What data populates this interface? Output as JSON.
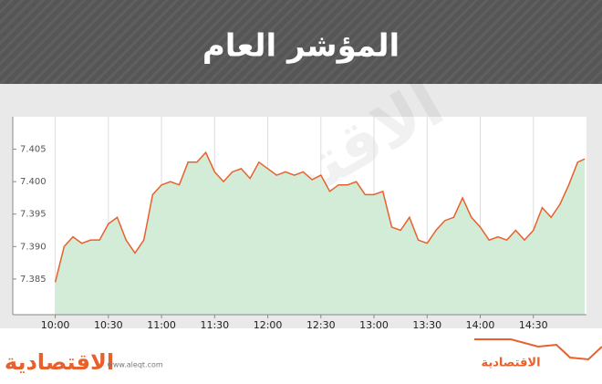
{
  "chart_data": {
    "type": "area",
    "title": "المؤشر العام",
    "x": [
      "10:00",
      "10:05",
      "10:10",
      "10:15",
      "10:20",
      "10:25",
      "10:30",
      "10:35",
      "10:40",
      "10:45",
      "10:50",
      "10:55",
      "11:00",
      "11:05",
      "11:10",
      "11:15",
      "11:20",
      "11:25",
      "11:30",
      "11:35",
      "11:40",
      "11:45",
      "11:50",
      "11:55",
      "12:00",
      "12:05",
      "12:10",
      "12:15",
      "12:20",
      "12:25",
      "12:30",
      "12:35",
      "12:40",
      "12:45",
      "12:50",
      "12:55",
      "13:00",
      "13:05",
      "13:10",
      "13:15",
      "13:20",
      "13:25",
      "13:30",
      "13:35",
      "13:40",
      "13:45",
      "13:50",
      "13:55",
      "14:00",
      "14:05",
      "14:10",
      "14:15",
      "14:20",
      "14:25",
      "14:30",
      "14:35",
      "14:40",
      "14:45",
      "14:50",
      "14:55",
      "14:59"
    ],
    "series": [
      {
        "name": "المؤشر العام",
        "color": "#e8612c",
        "fill": "#d3ecd8",
        "values": [
          7384.5,
          7390,
          7391.5,
          7390.5,
          7391,
          7391,
          7393.5,
          7394.5,
          7391,
          7389,
          7391,
          7398,
          7399.5,
          7400,
          7399.5,
          7403,
          7403,
          7404.5,
          7401.5,
          7400,
          7401.5,
          7402,
          7400.5,
          7403,
          7402,
          7401,
          7401.5,
          7401,
          7401.5,
          7400.3,
          7401,
          7398.5,
          7399.5,
          7399.5,
          7400,
          7398,
          7398,
          7398.5,
          7393,
          7392.5,
          7394.5,
          7391,
          7390.5,
          7392.5,
          7394,
          7394.5,
          7397.5,
          7394.5,
          7393,
          7391,
          7391.5,
          7391,
          7392.5,
          7391,
          7392.5,
          7396,
          7394.5,
          7396.5,
          7399.5,
          7403,
          7403.5
        ]
      }
    ],
    "xlim": [
      "09:36",
      "15:00"
    ],
    "xticks": [
      "10:00",
      "10:30",
      "11:00",
      "11:30",
      "12:00",
      "12:30",
      "13:00",
      "13:30",
      "14:00",
      "14:30"
    ],
    "ylim": [
      7379.5,
      7410
    ],
    "yticks": [
      {
        "value": 7385,
        "label": "7.385"
      },
      {
        "value": 7390,
        "label": "7.390"
      },
      {
        "value": 7395,
        "label": "7.395"
      },
      {
        "value": 7400,
        "label": "7.400"
      },
      {
        "value": 7405,
        "label": "7.405"
      }
    ],
    "grid": true,
    "watermark": "الاقتصادية",
    "footer": {
      "logo": "الاقتصادية",
      "url": "www.aleqt.com",
      "logo_right": "الاقتصادية"
    }
  }
}
